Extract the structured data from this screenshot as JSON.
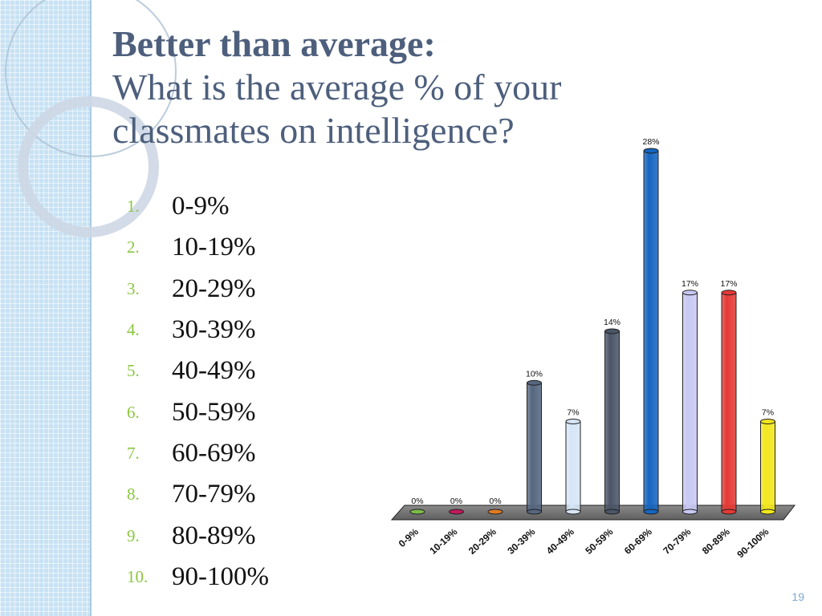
{
  "title": {
    "line1": "Better than average:",
    "line2": "What is the average % of your",
    "line3": "classmates on intelligence?"
  },
  "options": [
    {
      "num": "1.",
      "text": "0-9%"
    },
    {
      "num": "2.",
      "text": "10-19%"
    },
    {
      "num": "3.",
      "text": "20-29%"
    },
    {
      "num": "4.",
      "text": "30-39%"
    },
    {
      "num": "5.",
      "text": "40-49%"
    },
    {
      "num": "6.",
      "text": "50-59%"
    },
    {
      "num": "7.",
      "text": "60-69%"
    },
    {
      "num": "8.",
      "text": "70-79%"
    },
    {
      "num": "9.",
      "text": "80-89%"
    },
    {
      "num": "10.",
      "text": "90-100%"
    }
  ],
  "page_number": "19",
  "chart_data": {
    "type": "bar",
    "style": "3d-cylinder",
    "categories": [
      "0-9%",
      "10-19%",
      "20-29%",
      "30-39%",
      "40-49%",
      "50-59%",
      "60-69%",
      "70-79%",
      "80-89%",
      "90-100%"
    ],
    "values": [
      0,
      0,
      0,
      10,
      7,
      14,
      28,
      17,
      17,
      7
    ],
    "value_labels": [
      "0%",
      "0%",
      "0%",
      "10%",
      "7%",
      "14%",
      "28%",
      "17%",
      "17%",
      "7%"
    ],
    "colors": [
      "#7dbb4a",
      "#c2185b",
      "#e07b24",
      "#55667f",
      "#d6e6f7",
      "#4a5568",
      "#1565c0",
      "#c8c8f4",
      "#e53935",
      "#f2e71d"
    ],
    "ylim": [
      0,
      28
    ],
    "grid": false,
    "legend": "none",
    "title": "",
    "xlabel": "",
    "ylabel": ""
  }
}
